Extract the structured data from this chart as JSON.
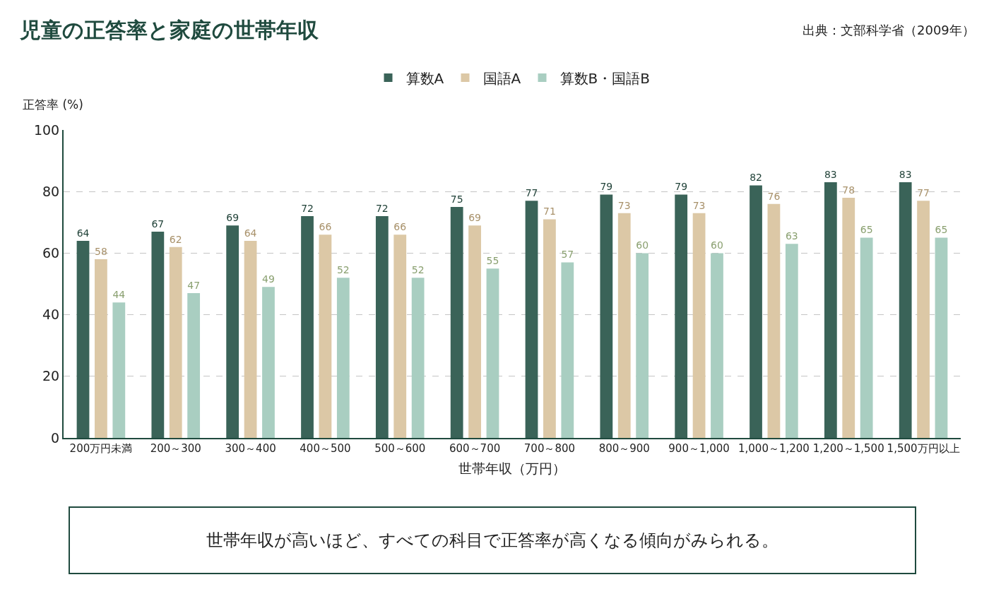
{
  "chart_data": {
    "type": "bar",
    "title": "児童の正答率と家庭の世帯年収",
    "xlabel": "世帯年収（万円）",
    "ylabel": "正答率 (%)",
    "categories": [
      "200万円未満",
      "200～300",
      "300～400",
      "400～500",
      "500～600",
      "600～700",
      "700～800",
      "800～900",
      "900～1,000",
      "1,000～1,200",
      "1,200～1,500",
      "1,500万円以上"
    ],
    "series": [
      {
        "name": "算数A",
        "color": "#3a6358",
        "values": [
          64,
          67,
          69,
          72,
          72,
          75,
          77,
          79,
          79,
          82,
          83,
          83
        ]
      },
      {
        "name": "国語A",
        "color": "#dcc8a6",
        "values": [
          58,
          62,
          64,
          66,
          66,
          69,
          71,
          73,
          73,
          76,
          78,
          77
        ]
      },
      {
        "name": "算数B・国語B",
        "color": "#a9cec1",
        "values": [
          44,
          47,
          49,
          52,
          52,
          55,
          57,
          60,
          60,
          63,
          65,
          65
        ]
      }
    ],
    "ylim": [
      0,
      100
    ],
    "yticks": [
      0,
      20,
      40,
      60,
      80,
      100
    ],
    "grid": "y",
    "legend": "top",
    "data_labels": true,
    "annotations": [
      "出典：文部科学省（2009年）",
      "世帯年収が高いほど、すべての科目で正答率が高くなる傾向がみられる。"
    ]
  }
}
